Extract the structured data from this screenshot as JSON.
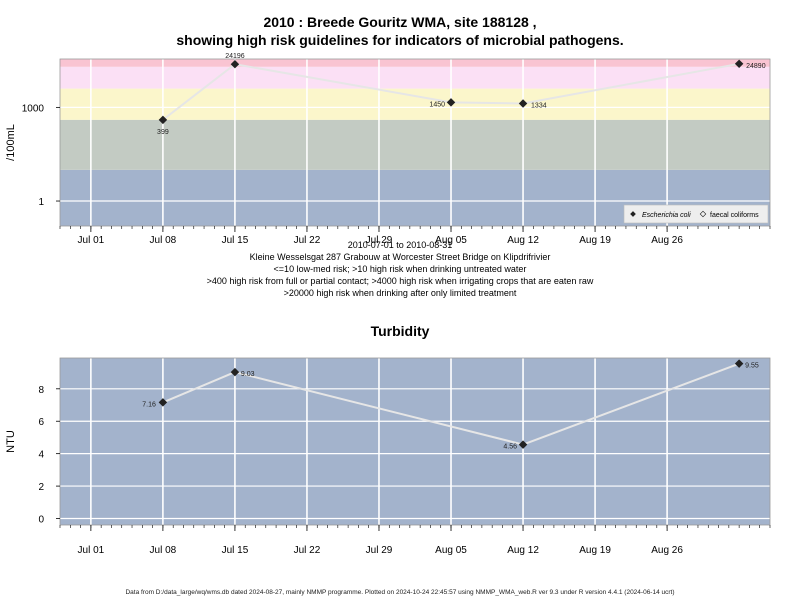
{
  "chart_data": [
    {
      "type": "line",
      "title_line1": "2010 : Breede Gouritz WMA, site 188128 ,",
      "title_line2": "showing high risk guidelines for indicators of microbial pathogens.",
      "ylabel": "/100mL",
      "y_scale": "log10",
      "y_ticks": [
        "1",
        "1000"
      ],
      "x_ticks": [
        "Jul 01",
        "Jul 08",
        "Jul 15",
        "Jul 22",
        "Jul 29",
        "Aug 05",
        "Aug 12",
        "Aug 19",
        "Aug 26"
      ],
      "x_range": [
        "2010-06-28",
        "2010-09-05"
      ],
      "bands": [
        {
          "from": 0,
          "to": 10,
          "color": "#a3b3cc"
        },
        {
          "from": 10,
          "to": 400,
          "color": "#c3cbc3"
        },
        {
          "from": 400,
          "to": 4000,
          "color": "#fbf6cb"
        },
        {
          "from": 4000,
          "to": 20000,
          "color": "#fbe0f5"
        },
        {
          "from": 20000,
          "to": 100000,
          "color": "#f9c4d2"
        }
      ],
      "series": [
        {
          "name": "Escherichia coli",
          "x": [
            "2010-07-08",
            "2010-07-15",
            "2010-08-05",
            "2010-08-12",
            "2010-09-02"
          ],
          "values": [
            399,
            24196,
            1450,
            1334,
            24890
          ],
          "labels": [
            "399",
            "24196",
            "1450",
            "1334",
            "24890"
          ]
        }
      ],
      "legend": {
        "position": "bottom-right",
        "entries": [
          "Escherichia coli",
          "faecal coliforms"
        ]
      },
      "grid": true
    },
    {
      "type": "line",
      "title": "Turbidity",
      "ylabel": "NTU",
      "y_ticks": [
        "0",
        "2",
        "4",
        "6",
        "8"
      ],
      "ylim": [
        -0.4,
        9.9
      ],
      "x_ticks": [
        "Jul 01",
        "Jul 08",
        "Jul 15",
        "Jul 22",
        "Jul 29",
        "Aug 05",
        "Aug 12",
        "Aug 19",
        "Aug 26"
      ],
      "x_range": [
        "2010-06-28",
        "2010-09-05"
      ],
      "background": "#a3b3cc",
      "series": [
        {
          "x": [
            "2010-07-08",
            "2010-07-15",
            "2010-08-12",
            "2010-09-02"
          ],
          "values": [
            7.16,
            9.03,
            4.56,
            9.55
          ],
          "labels": [
            "7.16",
            "9.03",
            "4.56",
            "9.55"
          ]
        }
      ],
      "grid": true
    }
  ],
  "notes": [
    "2010-07-01 to 2010-08-31",
    "Kleine Wesselsgat 287 Grabouw at Worcester Street Bridge on Klipdrifrivier",
    "<=10 low-med risk; >10 high risk when drinking untreated water",
    ">400 high risk from full or partial contact; >4000 high risk when irrigating crops that are eaten raw",
    ">20000 high risk when drinking after only limited treatment"
  ],
  "footer": "Data from D:/data_large/wq/wms.db dated 2024-08-27, mainly NMMP programme. Plotted on 2024-10-24 22:45:57 using NMMP_WMA_web.R ver 9.3 under R version 4.4.1 (2024-06-14 ucrt)"
}
